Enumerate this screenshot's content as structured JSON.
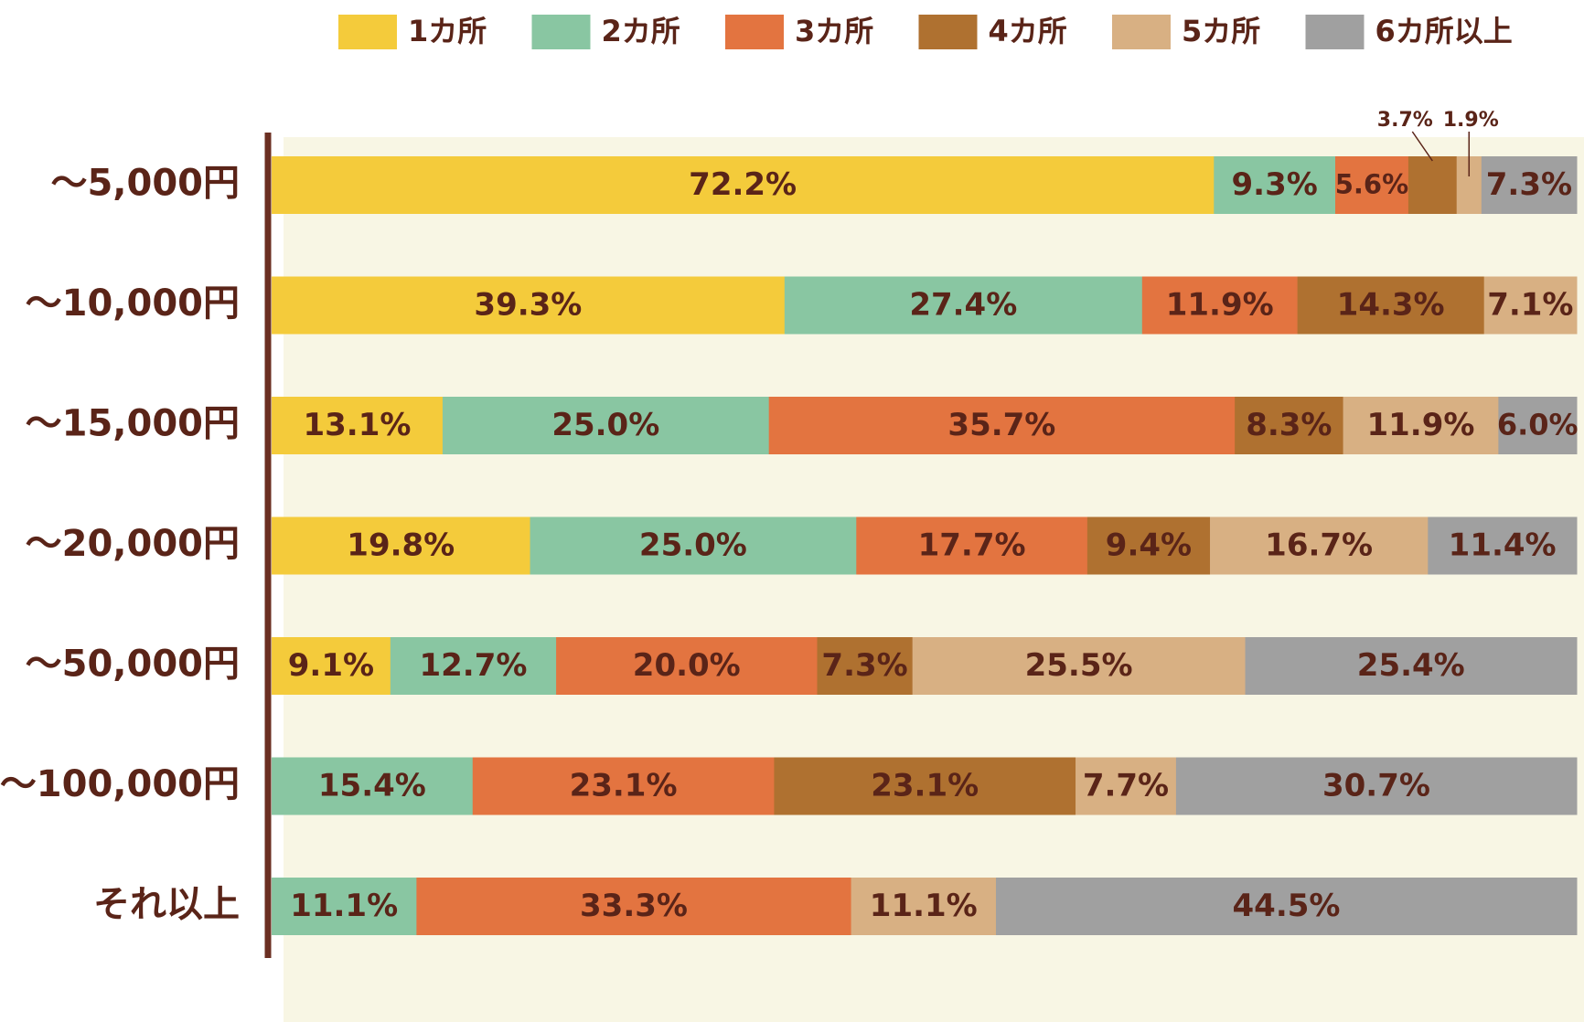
{
  "chart_data": {
    "type": "bar",
    "orientation": "horizontal",
    "stacked": true,
    "percent": true,
    "legend_position": "top",
    "categories": [
      "〜5,000円",
      "〜10,000円",
      "〜15,000円",
      "〜20,000円",
      "〜50,000円",
      "〜100,000円",
      "それ以上"
    ],
    "series": [
      {
        "name": "1カ所",
        "color": "#F4CB3B",
        "values": [
          72.2,
          39.3,
          13.1,
          19.8,
          9.1,
          0,
          0
        ]
      },
      {
        "name": "2カ所",
        "color": "#89C6A2",
        "values": [
          9.3,
          27.4,
          25.0,
          25.0,
          12.7,
          15.4,
          11.1
        ]
      },
      {
        "name": "3カ所",
        "color": "#E37440",
        "values": [
          5.6,
          11.9,
          35.7,
          17.7,
          20.0,
          23.1,
          33.3
        ]
      },
      {
        "name": "4カ所",
        "color": "#AF7130",
        "values": [
          3.7,
          14.3,
          8.3,
          9.4,
          7.3,
          23.1,
          0
        ]
      },
      {
        "name": "5カ所",
        "color": "#D8B083",
        "values": [
          1.9,
          7.1,
          11.9,
          16.7,
          25.5,
          7.7,
          11.1
        ]
      },
      {
        "name": "6カ所以上",
        "color": "#A0A0A0",
        "values": [
          7.3,
          0,
          6.0,
          11.4,
          25.4,
          30.7,
          44.5
        ]
      }
    ],
    "value_labels": [
      [
        "72.2%",
        "9.3%",
        "5.6%",
        "3.7%",
        "1.9%",
        "7.3%"
      ],
      [
        "39.3%",
        "27.4%",
        "11.9%",
        "14.3%",
        "7.1%",
        ""
      ],
      [
        "13.1%",
        "25.0%",
        "35.7%",
        "8.3%",
        "11.9%",
        "6.0%"
      ],
      [
        "19.8%",
        "25.0%",
        "17.7%",
        "9.4%",
        "16.7%",
        "11.4%"
      ],
      [
        "9.1%",
        "12.7%",
        "20.0%",
        "7.3%",
        "25.5%",
        "25.4%"
      ],
      [
        "",
        "15.4%",
        "23.1%",
        "23.1%",
        "7.7%",
        "30.7%"
      ],
      [
        "",
        "11.1%",
        "33.3%",
        "",
        "11.1%",
        "44.5%"
      ]
    ],
    "callouts": [
      {
        "row": 0,
        "series": 3,
        "text": "3.7%"
      },
      {
        "row": 0,
        "series": 4,
        "text": "1.9%"
      }
    ],
    "xlim": [
      0,
      100
    ]
  },
  "colors": {
    "plot_background": "#F8F6E4",
    "axis_line": "#6B2F22",
    "text": "#5A2418"
  }
}
